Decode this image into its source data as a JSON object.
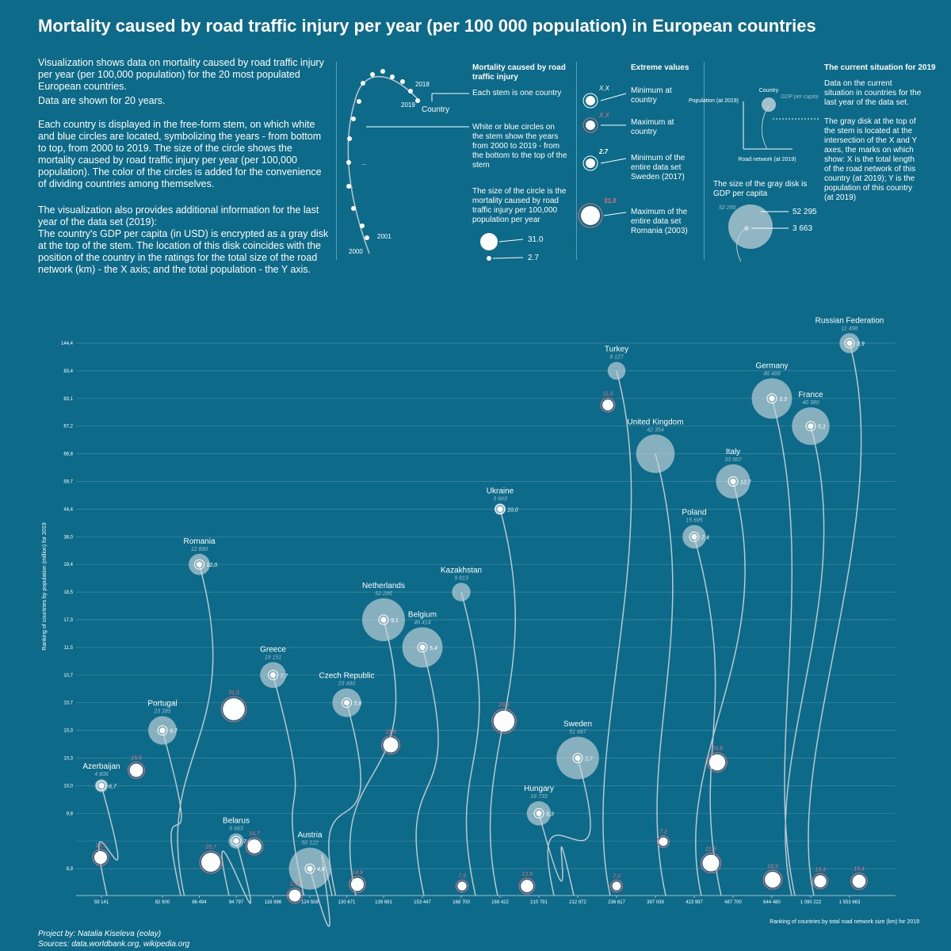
{
  "title": "Mortality caused by road traffic injury per year (per 100 000 population) in European countries",
  "intro": [
    "Visualization shows data on mortality caused by road traffic injury per year (per 100,000 population) for the 20 most populated European countries.",
    "Data are shown for 20 years.",
    "Each country is displayed in the free-form stem, on which white and blue circles are located, symbolizing the years - from bottom to top, from 2000 to 2019. The size of the circle shows the mortality caused by road traffic injury per year (per 100,000 population). The color of the circles is added for the convenience of dividing countries among themselves.",
    "The visualization also provides additional information for the last year of the data set (2019):",
    "The country's GDP per capita (in USD) is encrypted as a gray disk at the top of the stem. The location of this disk coincides with the position of the country in the ratings for the total size of the road network (km) - the X axis; and the total population - the Y axis."
  ],
  "legend": {
    "stem_labels": [
      "2018",
      "2019",
      "Country",
      "...",
      "...",
      "2001",
      "2000"
    ],
    "mortality": {
      "title": "Mortality caused by road traffic injury",
      "stem": "Each stem is one country",
      "circles": "White or blue circles on the stem show the years from 2000 to 2019 - from the bottom to the top of the stem",
      "size": "The size of the circle is the mortality caused by road traffic injury per 100,000 population per year",
      "big": "31.0",
      "small": "2.7"
    },
    "extreme": {
      "title": "Extreme values",
      "items": [
        {
          "mark": "X.X",
          "text": "Minimum at country"
        },
        {
          "mark": "X.X",
          "text": "Maximum at country"
        },
        {
          "mark": "2.7",
          "text": "Minimum of the entire data set Sweden (2017)"
        },
        {
          "mark": "31.0",
          "text": "Maximum of the entire data set Romania (2003)"
        }
      ]
    },
    "current": {
      "title": "The current situation for 2019",
      "intro": "Data on the current situation in countries for the last year of the data set.",
      "country": "Country",
      "gdp": "GDP per capita",
      "population": "Population (at 2019)",
      "road": "Road network (at 2019)",
      "disk": "The gray disk at the top of the stem is located at the intersection of the X and Y axes, the marks on which show: X is the total length of the road network of this country (at 2019); Y is the population of this country (at 2019)",
      "size": "The size of the gray disk is GDP per capita",
      "big": "52 295",
      "small": "3 663",
      "big_small": "52 295"
    }
  },
  "chart_data": {
    "type": "stem",
    "x_label": "Ranking of countries by total road network size (km) for 2019",
    "y_label": "Ranking of countries by population (million) for 2019",
    "x_categories": [
      "59 141",
      "82 900",
      "86 494",
      "94 797",
      "116 986",
      "124 508",
      "130 671",
      "139 691",
      "153 447",
      "168 700",
      "169 422",
      "210 791",
      "212 972",
      "236 617",
      "397 039",
      "423 997",
      "487 700",
      "644 480",
      "1 090 222",
      "1 553 663"
    ],
    "y_categories": [
      "144,4",
      "83,4",
      "83,1",
      "67,2",
      "66,8",
      "59,7",
      "44,4",
      "38,0",
      "19,4",
      "18,5",
      "17,3",
      "11,5",
      "10,7",
      "10,7",
      "10,3",
      "10,3",
      "10,0",
      "9,8",
      null,
      "8,9"
    ],
    "grid": true,
    "disk_color": "#c9d6dc",
    "min_color": "#ffffff",
    "max_color": "#e8707a",
    "countries": [
      {
        "name": "Russian Federation",
        "gdp": 11498,
        "gdp_label": "11 498",
        "x": 19,
        "y": 0,
        "min": {
          "value": 3.9,
          "label": "3,9"
        }
      },
      {
        "name": "Turkey",
        "gdp": 9127,
        "gdp_label": "9 127",
        "x": 13,
        "y": 1
      },
      {
        "name": "Germany",
        "gdp": 46468,
        "gdp_label": "46 468",
        "x": 17,
        "y": 2,
        "min": {
          "value": 3.3,
          "label": "3,3"
        }
      },
      {
        "name": "France",
        "gdp": 40380,
        "gdp_label": "40 380",
        "x": 18,
        "y": 3,
        "min": {
          "value": 5.1,
          "label": "5,1"
        }
      },
      {
        "name": "United Kingdom",
        "gdp": 42354,
        "gdp_label": "42 354",
        "x": 14,
        "y": 4
      },
      {
        "name": "Italy",
        "gdp": 33567,
        "gdp_label": "33 567",
        "x": 16,
        "y": 5,
        "min": {
          "value": 12.7,
          "label": "12,7"
        }
      },
      {
        "name": "Ukraine",
        "gdp": 3663,
        "gdp_label": "3 663",
        "x": 10,
        "y": 6,
        "min": {
          "value": 10.0,
          "label": "10,0"
        }
      },
      {
        "name": "Poland",
        "gdp": 15695,
        "gdp_label": "15 695",
        "x": 15,
        "y": 7,
        "min": {
          "value": 7.4,
          "label": "7,4"
        }
      },
      {
        "name": "Romania",
        "gdp": 12890,
        "gdp_label": "12 890",
        "x": 2,
        "y": 8,
        "min": {
          "value": 12.0,
          "label": "12,0"
        }
      },
      {
        "name": "Kazakhstan",
        "gdp": 9813,
        "gdp_label": "9 813",
        "x": 9,
        "y": 9
      },
      {
        "name": "Netherlands",
        "gdp": 52295,
        "gdp_label": "52 295",
        "x": 7,
        "y": 10,
        "min": {
          "value": 9.1,
          "label": "9,1"
        }
      },
      {
        "name": "Belgium",
        "gdp": 46414,
        "gdp_label": "46 414",
        "x": 8,
        "y": 11,
        "min": {
          "value": 5.4,
          "label": "5,4"
        }
      },
      {
        "name": "Greece",
        "gdp": 19151,
        "gdp_label": "19 151",
        "x": 4,
        "y": 12,
        "min": {
          "value": 7.7,
          "label": "7,7"
        }
      },
      {
        "name": "Czech Republic",
        "gdp": 23490,
        "gdp_label": "23 490",
        "x": 6,
        "y": 13,
        "min": {
          "value": 5.6,
          "label": "5,6"
        }
      },
      {
        "name": "Portugal",
        "gdp": 23285,
        "gdp_label": "23 285",
        "x": 1,
        "y": 14,
        "min": {
          "value": 9.7,
          "label": "9,7"
        }
      },
      {
        "name": "Sweden",
        "gdp": 51687,
        "gdp_label": "51 687",
        "x": 12,
        "y": 15,
        "min": {
          "value": 2.7,
          "label": "2,7"
        }
      },
      {
        "name": "Azerbaijan",
        "gdp": 4806,
        "gdp_label": "4 806",
        "x": 0,
        "y": 16,
        "min": {
          "value": 6.7,
          "label": "6,7"
        }
      },
      {
        "name": "Hungary",
        "gdp": 16733,
        "gdp_label": "16 733",
        "x": 11,
        "y": 17,
        "min": {
          "value": 5.3,
          "label": "5,3"
        }
      },
      {
        "name": "Belarus",
        "gdp": 6663,
        "gdp_label": "6 663",
        "x": 3,
        "y": 18,
        "min": {
          "value": 7.6,
          "label": "7,6"
        }
      },
      {
        "name": "Austria",
        "gdp": 50122,
        "gdp_label": "50 122",
        "x": 5,
        "y": 19,
        "min": {
          "value": 4.8,
          "label": "4,8"
        }
      }
    ],
    "maxima": {
      "values": [
        14.5,
        15.5,
        25.7,
        16.7,
        31.0,
        12.9,
        14.9,
        18.6,
        29.5,
        7.5,
        13.9,
        11.0,
        7.0,
        7.2,
        21.5,
        20.8,
        19.9,
        13.4,
        15.4
      ],
      "value_labels": [
        "14,5",
        "15,5",
        "25,7",
        "16,7",
        "31,0",
        "12,9",
        "14,9",
        "18,6",
        "29,5",
        "7,5",
        "13,9",
        "11,0",
        "7,0",
        "7,2",
        "21,5",
        "20,8",
        "19,9",
        "13,4",
        "15,4"
      ]
    }
  },
  "footer": [
    "Project by: Natalia Kiseleva (eolay)",
    "Sources: data.worldbank.org, wikipedia.org"
  ]
}
